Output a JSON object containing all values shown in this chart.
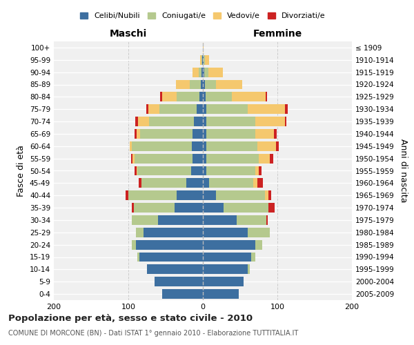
{
  "age_groups": [
    "0-4",
    "5-9",
    "10-14",
    "15-19",
    "20-24",
    "25-29",
    "30-34",
    "35-39",
    "40-44",
    "45-49",
    "50-54",
    "55-59",
    "60-64",
    "65-69",
    "70-74",
    "75-79",
    "80-84",
    "85-89",
    "90-94",
    "95-99",
    "100+"
  ],
  "birth_years": [
    "2005-2009",
    "2000-2004",
    "1995-1999",
    "1990-1994",
    "1985-1989",
    "1980-1984",
    "1975-1979",
    "1970-1974",
    "1965-1969",
    "1960-1964",
    "1955-1959",
    "1950-1954",
    "1945-1949",
    "1940-1944",
    "1935-1939",
    "1930-1934",
    "1925-1929",
    "1920-1924",
    "1915-1919",
    "1910-1914",
    "≤ 1909"
  ],
  "colors": {
    "celibi": "#3d6fa0",
    "coniugati": "#b5c98e",
    "vedovi": "#f5c86e",
    "divorziati": "#cc2222"
  },
  "maschi": {
    "celibi": [
      55,
      65,
      75,
      85,
      90,
      80,
      60,
      38,
      35,
      22,
      16,
      14,
      15,
      14,
      12,
      8,
      5,
      3,
      2,
      1,
      0
    ],
    "coniugati": [
      0,
      0,
      0,
      3,
      5,
      10,
      35,
      55,
      65,
      60,
      72,
      78,
      80,
      70,
      60,
      50,
      30,
      15,
      4,
      1,
      0
    ],
    "vedovi": [
      0,
      0,
      0,
      0,
      0,
      0,
      0,
      0,
      0,
      0,
      1,
      2,
      3,
      5,
      15,
      15,
      20,
      18,
      8,
      2,
      0
    ],
    "divorziati": [
      0,
      0,
      0,
      0,
      0,
      0,
      0,
      2,
      4,
      4,
      3,
      2,
      0,
      3,
      4,
      3,
      2,
      0,
      0,
      0,
      0
    ]
  },
  "femmine": {
    "celibi": [
      48,
      55,
      60,
      65,
      70,
      60,
      45,
      28,
      18,
      8,
      5,
      5,
      5,
      5,
      5,
      5,
      4,
      3,
      2,
      1,
      0
    ],
    "coniugati": [
      0,
      0,
      3,
      5,
      10,
      30,
      40,
      60,
      65,
      60,
      65,
      70,
      68,
      65,
      65,
      55,
      35,
      15,
      5,
      2,
      0
    ],
    "vedovi": [
      0,
      0,
      0,
      0,
      0,
      0,
      0,
      0,
      5,
      5,
      5,
      15,
      25,
      25,
      40,
      50,
      45,
      35,
      20,
      5,
      1
    ],
    "divorziati": [
      0,
      0,
      0,
      0,
      0,
      0,
      2,
      8,
      4,
      8,
      4,
      4,
      4,
      4,
      2,
      4,
      2,
      0,
      0,
      0,
      0
    ]
  },
  "title": "Popolazione per età, sesso e stato civile - 2010",
  "subtitle": "COMUNE DI MORCONE (BN) - Dati ISTAT 1° gennaio 2010 - Elaborazione TUTTITALIA.IT",
  "xlabel_left": "Maschi",
  "xlabel_right": "Femmine",
  "ylabel_left": "Fasce di età",
  "ylabel_right": "Anni di nascita",
  "xlim": 200,
  "background": "#f0f0f0",
  "grid_color": "#ffffff",
  "dashed_grid_color": "#cccccc"
}
